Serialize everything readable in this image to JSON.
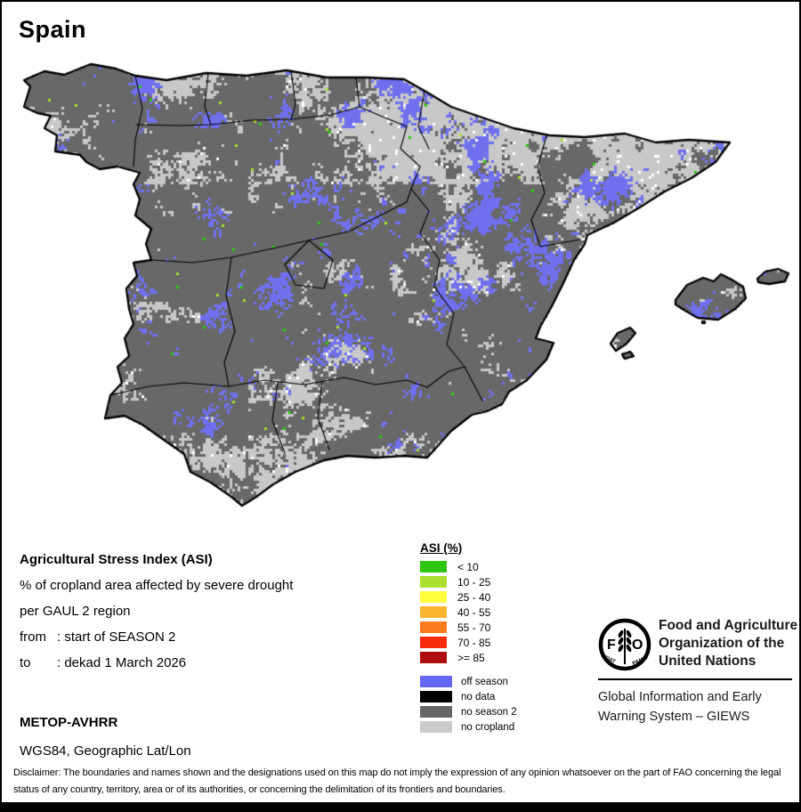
{
  "title": "Spain",
  "map": {
    "region_label": "Spain",
    "colors": {
      "no_season_2": "#686868",
      "no_cropland": "#C8C8C8",
      "off_season": "#7070EE",
      "no_data": "#000000",
      "boundary": "#000000",
      "speck_white": "#FFFFFF",
      "speck_green": "#2EC60F",
      "speck_yellow_green": "#AADF2E"
    }
  },
  "info": {
    "heading": "Agricultural Stress Index (ASI)",
    "line1": "% of cropland area affected by severe drought",
    "line2": "per GAUL 2 region",
    "from_label": "from",
    "from_value": ": start of SEASON 2",
    "to_label": "to",
    "to_value": ": dekad 1 March 2026",
    "sensor": "METOP-AVHRR",
    "projection": "WGS84, Geographic Lat/Lon"
  },
  "legend": {
    "title": "ASI (%)",
    "asi_classes": [
      {
        "label": "< 10",
        "color": "#2EC60F"
      },
      {
        "label": "10 - 25",
        "color": "#AADF2E"
      },
      {
        "label": "25 - 40",
        "color": "#FFFF40"
      },
      {
        "label": "40 - 55",
        "color": "#FBB42E"
      },
      {
        "label": "55 - 70",
        "color": "#F97C1E"
      },
      {
        "label": "70 - 85",
        "color": "#F92B0D"
      },
      {
        "label": ">= 85",
        "color": "#AE0E0E"
      }
    ],
    "status_classes": [
      {
        "label": "off season",
        "color": "#6666F5"
      },
      {
        "label": "no data",
        "color": "#000000"
      },
      {
        "label": "no season 2",
        "color": "#666666"
      },
      {
        "label": "no cropland",
        "color": "#CCCCCC"
      }
    ]
  },
  "branding": {
    "fao_logo_text": "FAO",
    "fao_logo_motto": "FIAT PANIS",
    "fao_name_lines": [
      "Food and Agriculture",
      "Organization of the",
      "United Nations"
    ],
    "giews_lines": [
      "Global Information and Early",
      "Warning System – GIEWS"
    ]
  },
  "disclaimer": "Disclaimer: The boundaries and names shown and the designations used on this map do not imply the expression of any opinion whatsoever on the part of FAO concerning the legal status of any country, territory, area or of its authorities, or concerning the delimitation of its frontiers and boundaries."
}
